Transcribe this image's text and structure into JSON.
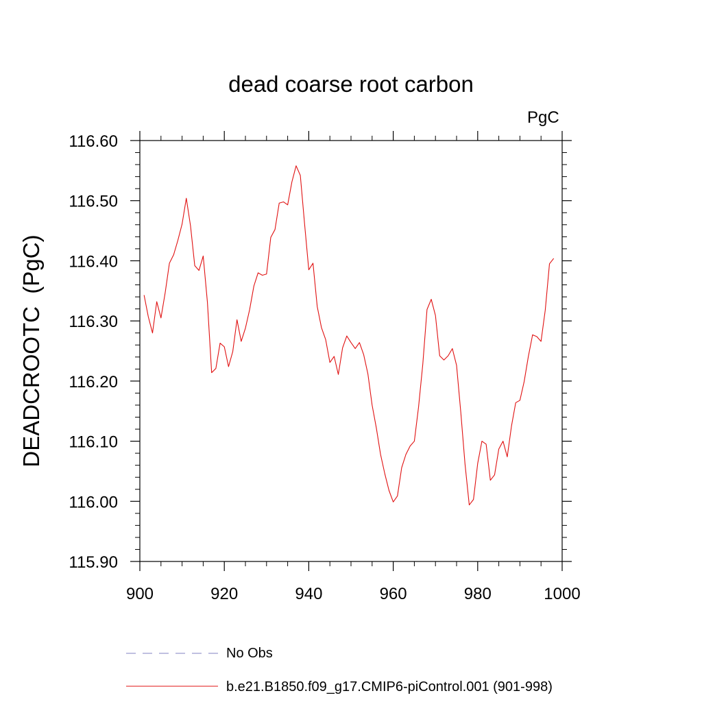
{
  "chart_data": {
    "type": "line",
    "title": "dead coarse root carbon",
    "units_label": "PgC",
    "ylabel": "DEADCROOTC  (PgC)",
    "xlabel": "",
    "xlim": [
      900,
      1000
    ],
    "ylim": [
      115.9,
      116.6
    ],
    "xticks": [
      "900",
      "920",
      "940",
      "960",
      "980",
      "1000"
    ],
    "yticks": [
      "116.60",
      "116.50",
      "116.40",
      "116.30",
      "116.20",
      "116.10",
      "116.00",
      "115.90"
    ],
    "grid": false,
    "legend_position": "bottom-left",
    "series": [
      {
        "name": "No Obs",
        "color": "#8080c0",
        "style": "dashed",
        "x": [],
        "y": []
      },
      {
        "name": "b.e21.B1850.f09_g17.CMIP6-piControl.001 (901-998)",
        "color": "#e01010",
        "style": "solid",
        "x": [
          901,
          902,
          903,
          904,
          905,
          906,
          907,
          908,
          909,
          910,
          911,
          912,
          913,
          914,
          915,
          916,
          917,
          918,
          919,
          920,
          921,
          922,
          923,
          924,
          925,
          926,
          927,
          928,
          929,
          930,
          931,
          932,
          933,
          934,
          935,
          936,
          937,
          938,
          939,
          940,
          941,
          942,
          943,
          944,
          945,
          946,
          947,
          948,
          949,
          950,
          951,
          952,
          953,
          954,
          955,
          956,
          957,
          958,
          959,
          960,
          961,
          962,
          963,
          964,
          965,
          966,
          967,
          968,
          969,
          970,
          971,
          972,
          973,
          974,
          975,
          976,
          977,
          978,
          979,
          980,
          981,
          982,
          983,
          984,
          985,
          986,
          987,
          988,
          989,
          990,
          991,
          992,
          993,
          994,
          995,
          996,
          997,
          998
        ],
        "y": [
          116.343,
          116.307,
          116.28,
          116.332,
          116.305,
          116.347,
          116.396,
          116.41,
          116.434,
          116.461,
          116.504,
          116.458,
          116.392,
          116.384,
          116.408,
          116.331,
          116.214,
          116.221,
          116.263,
          116.257,
          116.224,
          116.249,
          116.302,
          116.266,
          116.288,
          116.319,
          116.358,
          116.38,
          116.376,
          116.378,
          116.439,
          116.452,
          116.496,
          116.498,
          116.493,
          116.531,
          116.558,
          116.542,
          116.462,
          116.385,
          116.396,
          116.324,
          116.289,
          116.269,
          116.231,
          116.241,
          116.211,
          116.255,
          116.275,
          116.264,
          116.254,
          116.264,
          116.244,
          116.212,
          116.16,
          116.122,
          116.078,
          116.046,
          116.018,
          115.999,
          116.009,
          116.056,
          116.078,
          116.092,
          116.1,
          116.157,
          116.228,
          116.319,
          116.336,
          116.309,
          116.242,
          116.235,
          116.242,
          116.254,
          116.226,
          116.148,
          116.062,
          115.994,
          116.003,
          116.063,
          116.1,
          116.095,
          116.035,
          116.044,
          116.087,
          116.1,
          116.074,
          116.125,
          116.164,
          116.168,
          116.199,
          116.241,
          116.277,
          116.274,
          116.266,
          116.318,
          116.395,
          116.404
        ]
      }
    ]
  }
}
